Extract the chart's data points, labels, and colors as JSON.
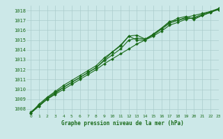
{
  "title": "Graphe pression niveau de la mer (hPa)",
  "bg_color": "#cce8e8",
  "grid_color": "#aacccc",
  "line_color": "#1a6b1a",
  "xlim": [
    -0.5,
    23
  ],
  "ylim": [
    1007.5,
    1018.5
  ],
  "yticks": [
    1008,
    1009,
    1010,
    1011,
    1012,
    1013,
    1014,
    1015,
    1016,
    1017,
    1018
  ],
  "xticks": [
    0,
    1,
    2,
    3,
    4,
    5,
    6,
    7,
    8,
    9,
    10,
    11,
    12,
    13,
    14,
    15,
    16,
    17,
    18,
    19,
    20,
    21,
    22,
    23
  ],
  "series": [
    [
      1007.6,
      1008.3,
      1009.0,
      1009.5,
      1010.0,
      1010.5,
      1011.0,
      1011.5,
      1012.0,
      1012.6,
      1013.1,
      1013.6,
      1014.1,
      1014.6,
      1015.0,
      1015.4,
      1015.9,
      1016.5,
      1016.8,
      1017.1,
      1017.3,
      1017.6,
      1017.9,
      1018.1
    ],
    [
      1007.6,
      1008.3,
      1009.0,
      1009.6,
      1010.2,
      1010.7,
      1011.2,
      1011.7,
      1012.2,
      1013.0,
      1013.8,
      1014.5,
      1015.4,
      1015.0,
      1015.0,
      1015.6,
      1016.2,
      1016.8,
      1017.2,
      1017.4,
      1017.1,
      1017.5,
      1017.8,
      1018.1
    ],
    [
      1007.6,
      1008.5,
      1009.2,
      1009.8,
      1010.4,
      1010.9,
      1011.4,
      1011.9,
      1012.4,
      1013.2,
      1013.8,
      1014.4,
      1015.4,
      1015.5,
      1015.1,
      1015.6,
      1016.2,
      1016.9,
      1017.0,
      1017.2,
      1017.2,
      1017.5,
      1017.8,
      1018.2
    ],
    [
      1007.7,
      1008.4,
      1009.1,
      1009.7,
      1010.2,
      1010.7,
      1011.2,
      1011.7,
      1012.2,
      1012.9,
      1013.5,
      1014.1,
      1015.0,
      1015.2,
      1015.1,
      1015.5,
      1016.1,
      1016.7,
      1017.0,
      1017.3,
      1017.5,
      1017.7,
      1017.9,
      1018.2
    ]
  ]
}
